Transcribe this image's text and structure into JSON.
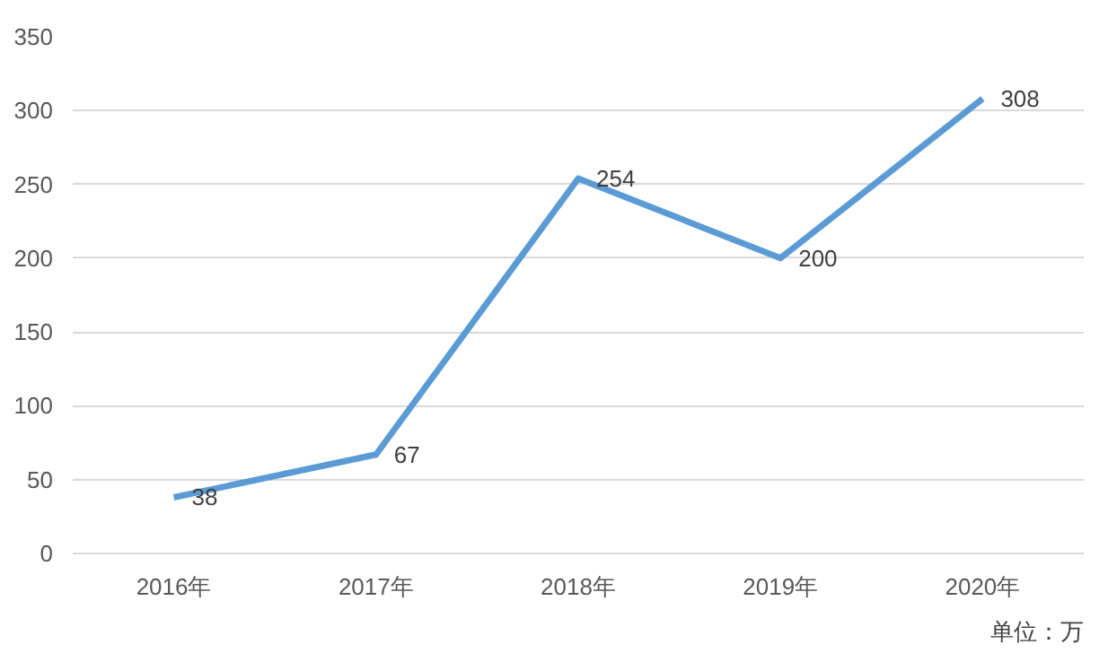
{
  "chart_data": {
    "type": "line",
    "categories": [
      "2016年",
      "2017年",
      "2018年",
      "2019年",
      "2020年"
    ],
    "series": [
      {
        "color": "#5b9bd5",
        "values": [
          38,
          67,
          254,
          200,
          308
        ]
      }
    ],
    "ylim": [
      0,
      350
    ],
    "yticks": [
      0,
      50,
      100,
      150,
      200,
      250,
      300,
      350
    ],
    "grid": "y",
    "data_labels": true,
    "line_style": "solid",
    "annotations": [
      "单位：万"
    ]
  }
}
